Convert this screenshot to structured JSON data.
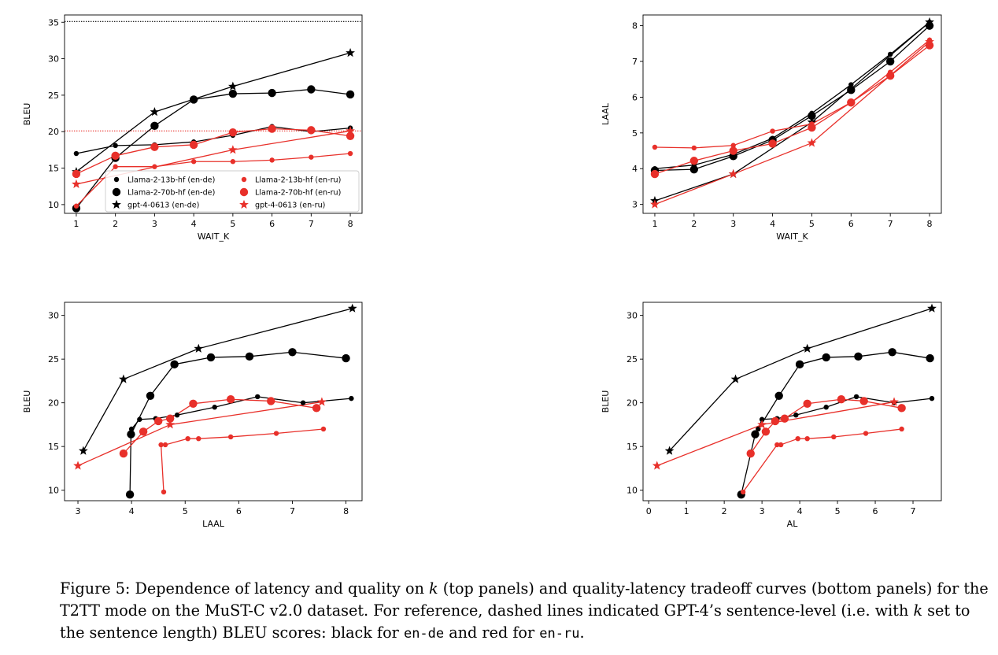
{
  "chart_data": [
    {
      "type": "line",
      "panel": "top-left",
      "xlabel": "WAIT_K",
      "ylabel": "BLEU",
      "xlim": [
        0.7,
        8.3
      ],
      "ylim": [
        8.8,
        36.0
      ],
      "xticks": [
        1,
        2,
        3,
        4,
        5,
        6,
        7,
        8
      ],
      "yticks": [
        10,
        15,
        20,
        25,
        30,
        35
      ],
      "grid": false,
      "legend": "lower-right",
      "hlines": [
        {
          "y": 35.1,
          "color": "#000000",
          "style": "dotted"
        },
        {
          "y": 20.1,
          "color": "#e8302a",
          "style": "dotted"
        }
      ],
      "series": [
        {
          "name": "Llama-2-13b-hf (en-de)",
          "color": "#000000",
          "marker": "small-dot",
          "x": [
            1,
            2,
            3,
            4,
            5,
            6,
            7,
            8
          ],
          "y": [
            17.0,
            18.1,
            18.2,
            18.6,
            19.5,
            20.7,
            20.0,
            20.5
          ]
        },
        {
          "name": "Llama-2-70b-hf (en-de)",
          "color": "#000000",
          "marker": "large-dot",
          "x": [
            1,
            2,
            3,
            4,
            5,
            6,
            7,
            8
          ],
          "y": [
            9.5,
            16.4,
            20.8,
            24.4,
            25.2,
            25.3,
            25.8,
            25.1
          ]
        },
        {
          "name": "gpt-4-0613 (en-de)",
          "color": "#000000",
          "marker": "star",
          "x": [
            1,
            3,
            5,
            8
          ],
          "y": [
            14.5,
            22.7,
            26.2,
            30.8
          ]
        },
        {
          "name": "Llama-2-13b-hf (en-ru)",
          "color": "#e8302a",
          "marker": "small-dot",
          "x": [
            1,
            2,
            3,
            4,
            5,
            6,
            7,
            8
          ],
          "y": [
            9.8,
            15.2,
            15.2,
            15.9,
            15.9,
            16.1,
            16.5,
            17.0
          ]
        },
        {
          "name": "Llama-2-70b-hf (en-ru)",
          "color": "#e8302a",
          "marker": "large-dot",
          "x": [
            1,
            2,
            3,
            4,
            5,
            6,
            7,
            8
          ],
          "y": [
            14.2,
            16.7,
            17.9,
            18.2,
            19.9,
            20.4,
            20.2,
            19.4
          ]
        },
        {
          "name": "gpt-4-0613 (en-ru)",
          "color": "#e8302a",
          "marker": "star",
          "x": [
            1,
            5,
            8
          ],
          "y": [
            12.8,
            17.5,
            20.1
          ]
        }
      ]
    },
    {
      "type": "line",
      "panel": "top-right",
      "xlabel": "WAIT_K",
      "ylabel": "LAAL",
      "xlim": [
        0.7,
        8.3
      ],
      "ylim": [
        2.75,
        8.3
      ],
      "xticks": [
        1,
        2,
        3,
        4,
        5,
        6,
        7,
        8
      ],
      "yticks": [
        3,
        4,
        5,
        6,
        7,
        8
      ],
      "grid": false,
      "series": [
        {
          "name": "Llama-2-13b-hf (en-de)",
          "color": "#000000",
          "marker": "small-dot",
          "x": [
            1,
            2,
            3,
            4,
            5,
            6,
            7,
            8
          ],
          "y": [
            4.0,
            4.1,
            4.4,
            4.85,
            5.55,
            6.35,
            7.2,
            8.1
          ]
        },
        {
          "name": "Llama-2-70b-hf (en-de)",
          "color": "#000000",
          "marker": "large-dot",
          "x": [
            1,
            2,
            3,
            4,
            5,
            6,
            7,
            8
          ],
          "y": [
            3.95,
            3.98,
            4.35,
            4.8,
            5.48,
            6.2,
            7.0,
            8.0
          ]
        },
        {
          "name": "gpt-4-0613 (en-de)",
          "color": "#000000",
          "marker": "star",
          "x": [
            1,
            3,
            5,
            8
          ],
          "y": [
            3.1,
            3.85,
            5.3,
            8.1
          ]
        },
        {
          "name": "Llama-2-13b-hf (en-ru)",
          "color": "#e8302a",
          "marker": "small-dot",
          "x": [
            1,
            2,
            3,
            4,
            5,
            6,
            7,
            8
          ],
          "y": [
            4.6,
            4.58,
            4.65,
            5.05,
            5.25,
            5.85,
            6.7,
            7.6
          ]
        },
        {
          "name": "Llama-2-70b-hf (en-ru)",
          "color": "#e8302a",
          "marker": "large-dot",
          "x": [
            1,
            2,
            3,
            4,
            5,
            6,
            7,
            8
          ],
          "y": [
            3.85,
            4.22,
            4.5,
            4.7,
            5.15,
            5.85,
            6.6,
            7.45
          ]
        },
        {
          "name": "gpt-4-0613 (en-ru)",
          "color": "#e8302a",
          "marker": "star",
          "x": [
            1,
            3,
            5,
            8
          ],
          "y": [
            3.0,
            3.85,
            4.72,
            7.55
          ]
        }
      ]
    },
    {
      "type": "line",
      "panel": "bottom-left",
      "xlabel": "LAAL",
      "ylabel": "BLEU",
      "xlim": [
        2.75,
        8.3
      ],
      "ylim": [
        8.8,
        31.5
      ],
      "xticks": [
        3,
        4,
        5,
        6,
        7,
        8
      ],
      "yticks": [
        10,
        15,
        20,
        25,
        30
      ],
      "grid": false,
      "series": [
        {
          "name": "Llama-2-13b-hf (en-de)",
          "color": "#000000",
          "marker": "small-dot",
          "x": [
            4.0,
            4.15,
            4.45,
            4.85,
            5.55,
            6.35,
            7.2,
            8.1
          ],
          "y": [
            17.0,
            18.1,
            18.2,
            18.6,
            19.5,
            20.7,
            20.0,
            20.5
          ]
        },
        {
          "name": "Llama-2-70b-hf (en-de)",
          "color": "#000000",
          "marker": "large-dot",
          "x": [
            3.97,
            3.99,
            4.35,
            4.8,
            5.48,
            6.2,
            7.0,
            8.0
          ],
          "y": [
            9.5,
            16.4,
            20.8,
            24.4,
            25.2,
            25.3,
            25.8,
            25.1
          ]
        },
        {
          "name": "gpt-4-0613 (en-de)",
          "color": "#000000",
          "marker": "star",
          "x": [
            3.1,
            3.85,
            5.25,
            8.12
          ],
          "y": [
            14.5,
            22.7,
            26.2,
            30.8
          ]
        },
        {
          "name": "Llama-2-13b-hf (en-ru)",
          "color": "#e8302a",
          "marker": "small-dot",
          "x": [
            4.6,
            4.55,
            4.63,
            5.05,
            5.25,
            5.85,
            6.7,
            7.58
          ],
          "y": [
            9.8,
            15.2,
            15.2,
            15.9,
            15.9,
            16.1,
            16.5,
            17.0
          ]
        },
        {
          "name": "Llama-2-70b-hf (en-ru)",
          "color": "#e8302a",
          "marker": "large-dot",
          "x": [
            3.85,
            4.22,
            4.5,
            4.72,
            5.15,
            5.85,
            6.6,
            7.45
          ],
          "y": [
            14.2,
            16.7,
            17.9,
            18.2,
            19.9,
            20.4,
            20.2,
            19.4
          ]
        },
        {
          "name": "gpt-4-0613 (en-ru)",
          "color": "#e8302a",
          "marker": "star",
          "x": [
            3.0,
            4.72,
            7.55
          ],
          "y": [
            12.8,
            17.5,
            20.1
          ]
        }
      ]
    },
    {
      "type": "line",
      "panel": "bottom-right",
      "xlabel": "AL",
      "ylabel": "BLEU",
      "xlim": [
        -0.15,
        7.75
      ],
      "ylim": [
        8.8,
        31.5
      ],
      "xticks": [
        0,
        1,
        2,
        3,
        4,
        5,
        6,
        7
      ],
      "yticks": [
        10,
        15,
        20,
        25,
        30
      ],
      "grid": false,
      "series": [
        {
          "name": "Llama-2-13b-hf (en-de)",
          "color": "#000000",
          "marker": "small-dot",
          "x": [
            2.9,
            3.0,
            3.4,
            3.9,
            4.7,
            5.5,
            6.5,
            7.5
          ],
          "y": [
            17.0,
            18.1,
            18.2,
            18.6,
            19.5,
            20.7,
            20.0,
            20.5
          ]
        },
        {
          "name": "Llama-2-70b-hf (en-de)",
          "color": "#000000",
          "marker": "large-dot",
          "x": [
            2.45,
            2.82,
            3.45,
            4.0,
            4.7,
            5.55,
            6.45,
            7.45
          ],
          "y": [
            9.5,
            16.4,
            20.8,
            24.4,
            25.2,
            25.3,
            25.8,
            25.1
          ]
        },
        {
          "name": "gpt-4-0613 (en-de)",
          "color": "#000000",
          "marker": "star",
          "x": [
            0.55,
            2.3,
            4.2,
            7.5
          ],
          "y": [
            14.5,
            22.7,
            26.2,
            30.8
          ]
        },
        {
          "name": "Llama-2-13b-hf (en-ru)",
          "color": "#e8302a",
          "marker": "small-dot",
          "x": [
            2.5,
            3.4,
            3.5,
            3.95,
            4.2,
            4.9,
            5.75,
            6.7
          ],
          "y": [
            9.8,
            15.2,
            15.2,
            15.9,
            15.9,
            16.1,
            16.5,
            17.0
          ]
        },
        {
          "name": "Llama-2-70b-hf (en-ru)",
          "color": "#e8302a",
          "marker": "large-dot",
          "x": [
            2.7,
            3.1,
            3.35,
            3.6,
            4.2,
            5.1,
            5.7,
            6.7
          ],
          "y": [
            14.2,
            16.7,
            17.9,
            18.2,
            19.9,
            20.4,
            20.2,
            19.4
          ]
        },
        {
          "name": "gpt-4-0613 (en-ru)",
          "color": "#e8302a",
          "marker": "star",
          "x": [
            0.22,
            3.0,
            6.5
          ],
          "y": [
            12.8,
            17.5,
            20.1
          ]
        }
      ]
    }
  ],
  "caption": {
    "part1": "Figure 5: Dependence of latency and quality on ",
    "k1": "k",
    "part2": " (top panels) and quality-latency tradeoff curves (bottom panels) for the T2TT mode on the MuST-C v2.0 dataset. For reference, dashed lines indicated GPT-4’s sentence-level (i.e. with ",
    "k2": "k",
    "part3": " set to the sentence length) BLEU scores: black for ",
    "code1": "en-de",
    "part4": " and red for ",
    "code2": "en-ru",
    "part5": "."
  }
}
